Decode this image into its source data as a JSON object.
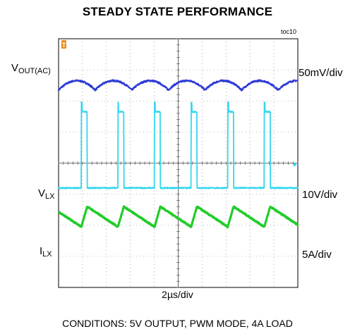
{
  "chart_data": {
    "type": "line",
    "title": "STEADY STATE PERFORMANCE",
    "figure_id": "toc10",
    "xlabel": "2µs/div",
    "x_divisions": 10,
    "y_divisions": 8,
    "grid": true,
    "trigger_marker": "T",
    "series": [
      {
        "name_main": "V",
        "name_sub": "OUT(AC)",
        "scale": "50mV/div",
        "color": "#2d3bd6",
        "shape": "ripple",
        "period_div": 1.53,
        "phase_div": 0.0,
        "center_div": 6.5,
        "amplitude_div": 0.15
      },
      {
        "name_main": "V",
        "name_sub": "LX",
        "scale": "10V/div",
        "color": "#33d6f0",
        "shape": "pulse",
        "period_div": 1.53,
        "phase_div": 0.95,
        "duty": 0.16,
        "low_div": 3.2,
        "high_div": 5.65
      },
      {
        "name_main": "I",
        "name_sub": "LX",
        "scale": "5A/div",
        "color": "#22cc2a",
        "shape": "triangle",
        "period_div": 1.53,
        "phase_div": 0.95,
        "duty": 0.16,
        "min_div": 1.95,
        "max_div": 2.6
      }
    ]
  },
  "conditions": "CONDITIONS: 5V OUTPUT, PWM MODE, 4A LOAD"
}
